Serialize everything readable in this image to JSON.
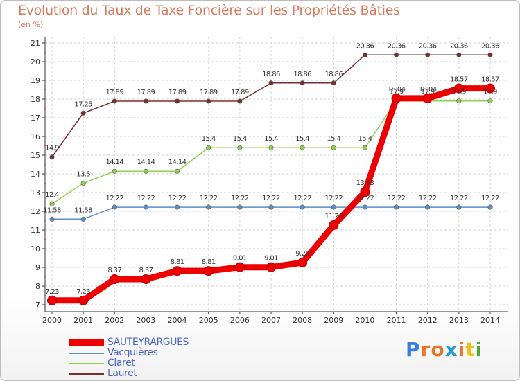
{
  "title": "Evolution du Taux de Taxe Foncière sur les Propriétés Bâties",
  "subtitle": "(en %)",
  "brand": {
    "text": "Proxiti",
    "colors": [
      "#3b7fd4",
      "#e8742a",
      "#e8742a",
      "#2a9ad4",
      "#e8742a",
      "#e8c01a",
      "#4aa83a"
    ]
  },
  "chart_data": {
    "type": "line",
    "title": "Evolution du Taux de Taxe Foncière sur les Propriétés Bâties",
    "ylabel": "(en %)",
    "x": [
      "2000",
      "2001",
      "2002",
      "2003",
      "2004",
      "2005",
      "2006",
      "2007",
      "2008",
      "2009",
      "2010",
      "2011",
      "2012",
      "2013",
      "2014"
    ],
    "ylim": [
      7,
      21
    ],
    "yticks": [
      "7",
      "8",
      "9",
      "10",
      "11",
      "12",
      "13",
      "14",
      "15",
      "16",
      "17",
      "18",
      "19",
      "20",
      "21"
    ],
    "series": [
      {
        "name": "SAUTEYRARGUES",
        "color": "#ee0000",
        "emphasis": true,
        "values": [
          7.23,
          7.23,
          8.37,
          8.37,
          8.81,
          8.81,
          9.01,
          9.01,
          9.26,
          11.26,
          13.03,
          18.04,
          18.04,
          18.57,
          18.57
        ],
        "labels": [
          "7.23",
          "7.23",
          "8.37",
          "8.37",
          "8.81",
          "8.81",
          "9.01",
          "9.01",
          "9.26",
          "11.26",
          "13.03",
          "18.04",
          "18.04",
          "18.57",
          "18.57"
        ]
      },
      {
        "name": "Vacquières",
        "color": "#5a8fc8",
        "values": [
          11.58,
          11.58,
          12.22,
          12.22,
          12.22,
          12.22,
          12.22,
          12.22,
          12.22,
          12.22,
          12.22,
          12.22,
          12.22,
          12.22,
          12.22
        ],
        "labels": [
          "11.58",
          "11.58",
          "12.22",
          "12.22",
          "12.22",
          "12.22",
          "12.22",
          "12.22",
          "12.22",
          "12.22",
          "12.22",
          "12.22",
          "12.22",
          "12.22",
          "12.22"
        ]
      },
      {
        "name": "Claret",
        "color": "#8fd14f",
        "values": [
          12.4,
          13.5,
          14.14,
          14.14,
          14.14,
          15.4,
          15.4,
          15.4,
          15.4,
          15.4,
          15.4,
          17.9,
          17.9,
          17.9,
          17.9
        ],
        "labels": [
          "12.4",
          "13.5",
          "14.14",
          "14.14",
          "14.14",
          "15.4",
          "15.4",
          "15.4",
          "15.4",
          "15.4",
          "15.4",
          "17.9",
          "17.9",
          "17.9",
          "17.9"
        ]
      },
      {
        "name": "Lauret",
        "color": "#7a2e2e",
        "values": [
          14.9,
          17.25,
          17.89,
          17.89,
          17.89,
          17.89,
          17.89,
          18.86,
          18.86,
          18.86,
          20.36,
          20.36,
          20.36,
          20.36,
          20.36
        ],
        "labels": [
          "14.9",
          "17.25",
          "17.89",
          "17.89",
          "17.89",
          "17.89",
          "17.89",
          "18.86",
          "18.86",
          "18.86",
          "20.36",
          "20.36",
          "20.36",
          "20.36",
          "20.36"
        ]
      }
    ]
  }
}
